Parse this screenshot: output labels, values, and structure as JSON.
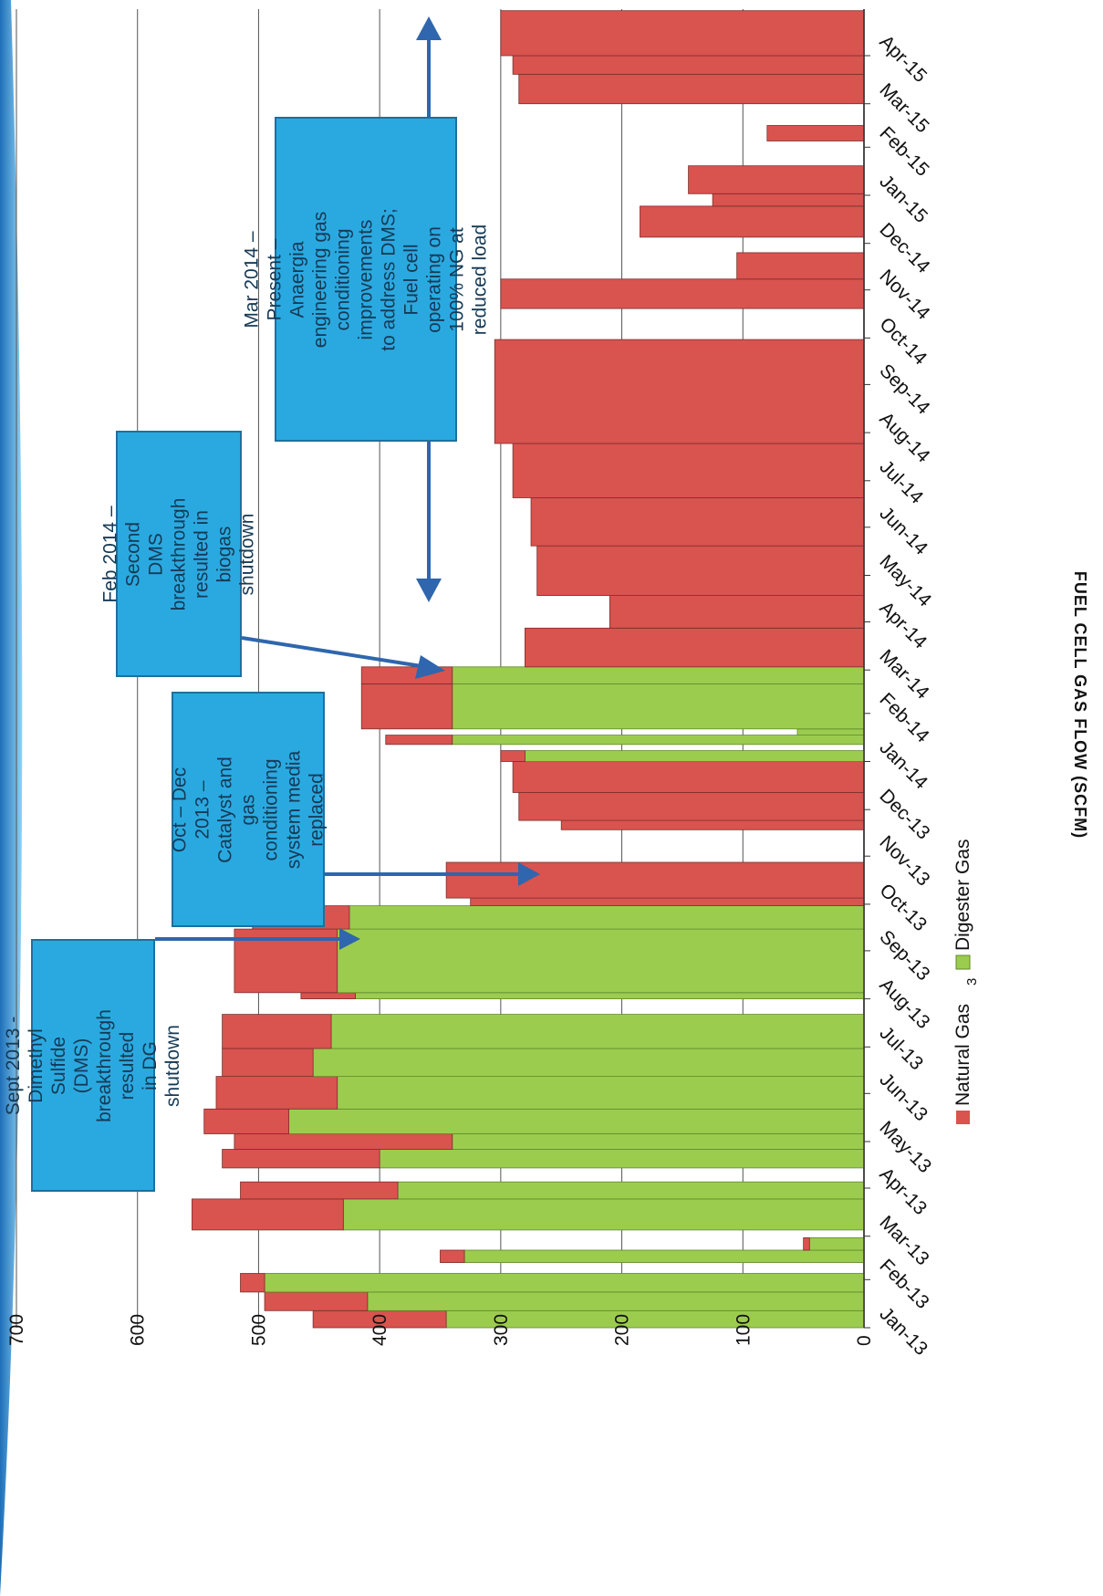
{
  "chart_data": {
    "type": "bar",
    "stacked": true,
    "orientation": "rotated 90 degrees clockwise (time axis runs bottom-to-top)",
    "ylabel": "FUEL CELL GAS FLOW (SCFM)",
    "xlabel": "",
    "ylim": [
      0,
      700
    ],
    "yticks": [
      0,
      100,
      200,
      300,
      400,
      500,
      600,
      700
    ],
    "grid": true,
    "legend_placement": "bottom",
    "colors": {
      "natural_gas": "#d9534f",
      "digester_gas": "#9ccc4e",
      "outline": "#7a2f2c"
    },
    "months": [
      "Jan-13",
      "Feb-13",
      "Mar-13",
      "Apr-13",
      "May-13",
      "Jun-13",
      "Jul-13",
      "Aug-13",
      "Sep-13",
      "Oct-13",
      "Nov-13",
      "Dec-13",
      "Jan-14",
      "Feb-14",
      "Mar-14",
      "Apr-14",
      "May-14",
      "Jun-14",
      "Jul-14",
      "Aug-14",
      "Sep-14",
      "Oct-14",
      "Nov-14",
      "Dec-14",
      "Jan-15",
      "Feb-15",
      "Mar-15",
      "Apr-15"
    ],
    "series": [
      {
        "name": "Natural Gas",
        "key": "natural_gas"
      },
      {
        "name": "Digester Gas",
        "key": "digester_gas"
      }
    ],
    "segments": [
      {
        "start": "2013-01-01",
        "end": "2013-01-12",
        "natural_gas": 110,
        "digester_gas": 345
      },
      {
        "start": "2013-01-12",
        "end": "2013-01-24",
        "natural_gas": 85,
        "digester_gas": 410
      },
      {
        "start": "2013-01-24",
        "end": "2013-02-05",
        "natural_gas": 20,
        "digester_gas": 495
      },
      {
        "start": "2013-02-05",
        "end": "2013-02-12",
        "natural_gas": 0,
        "digester_gas": 0
      },
      {
        "start": "2013-02-12",
        "end": "2013-02-20",
        "natural_gas": 20,
        "digester_gas": 330
      },
      {
        "start": "2013-02-20",
        "end": "2013-02-28",
        "natural_gas": 5,
        "digester_gas": 45
      },
      {
        "start": "2013-02-28",
        "end": "2013-03-05",
        "natural_gas": 0,
        "digester_gas": 0
      },
      {
        "start": "2013-03-05",
        "end": "2013-03-25",
        "natural_gas": 125,
        "digester_gas": 430
      },
      {
        "start": "2013-03-25",
        "end": "2013-04-05",
        "natural_gas": 130,
        "digester_gas": 385
      },
      {
        "start": "2013-04-05",
        "end": "2013-04-14",
        "natural_gas": 0,
        "digester_gas": 0
      },
      {
        "start": "2013-04-14",
        "end": "2013-04-26",
        "natural_gas": 130,
        "digester_gas": 400
      },
      {
        "start": "2013-04-26",
        "end": "2013-05-06",
        "natural_gas": 180,
        "digester_gas": 340
      },
      {
        "start": "2013-05-06",
        "end": "2013-05-22",
        "natural_gas": 70,
        "digester_gas": 475
      },
      {
        "start": "2013-05-22",
        "end": "2013-06-12",
        "natural_gas": 100,
        "digester_gas": 435
      },
      {
        "start": "2013-06-12",
        "end": "2013-06-30",
        "natural_gas": 75,
        "digester_gas": 455
      },
      {
        "start": "2013-06-30",
        "end": "2013-07-22",
        "natural_gas": 90,
        "digester_gas": 440
      },
      {
        "start": "2013-07-22",
        "end": "2013-08-01",
        "natural_gas": 0,
        "digester_gas": 0
      },
      {
        "start": "2013-08-01",
        "end": "2013-08-05",
        "natural_gas": 45,
        "digester_gas": 420
      },
      {
        "start": "2013-08-05",
        "end": "2013-09-15",
        "natural_gas": 85,
        "digester_gas": 435
      },
      {
        "start": "2013-09-15",
        "end": "2013-09-30",
        "natural_gas": 80,
        "digester_gas": 425
      },
      {
        "start": "2013-09-30",
        "end": "2013-10-05",
        "natural_gas": 325,
        "digester_gas": 0
      },
      {
        "start": "2013-10-05",
        "end": "2013-10-28",
        "natural_gas": 345,
        "digester_gas": 0
      },
      {
        "start": "2013-10-28",
        "end": "2013-11-18",
        "natural_gas": 0,
        "digester_gas": 0
      },
      {
        "start": "2013-11-18",
        "end": "2013-11-24",
        "natural_gas": 250,
        "digester_gas": 0
      },
      {
        "start": "2013-11-24",
        "end": "2013-12-12",
        "natural_gas": 285,
        "digester_gas": 0
      },
      {
        "start": "2013-12-12",
        "end": "2014-01-01",
        "natural_gas": 290,
        "digester_gas": 0
      },
      {
        "start": "2014-01-01",
        "end": "2014-01-08",
        "natural_gas": 20,
        "digester_gas": 280
      },
      {
        "start": "2014-01-08",
        "end": "2014-01-12",
        "natural_gas": 0,
        "digester_gas": 0
      },
      {
        "start": "2014-01-12",
        "end": "2014-01-18",
        "natural_gas": 55,
        "digester_gas": 340
      },
      {
        "start": "2014-01-18",
        "end": "2014-01-22",
        "natural_gas": 0,
        "digester_gas": 55
      },
      {
        "start": "2014-01-22",
        "end": "2014-02-20",
        "natural_gas": 75,
        "digester_gas": 340
      },
      {
        "start": "2014-02-20",
        "end": "2014-03-03",
        "natural_gas": 75,
        "digester_gas": 340
      },
      {
        "start": "2014-03-03",
        "end": "2014-03-28",
        "natural_gas": 280,
        "digester_gas": 0
      },
      {
        "start": "2014-03-28",
        "end": "2014-04-18",
        "natural_gas": 210,
        "digester_gas": 0
      },
      {
        "start": "2014-04-18",
        "end": "2014-05-20",
        "natural_gas": 270,
        "digester_gas": 0
      },
      {
        "start": "2014-05-20",
        "end": "2014-06-20",
        "natural_gas": 275,
        "digester_gas": 0
      },
      {
        "start": "2014-06-20",
        "end": "2014-07-25",
        "natural_gas": 290,
        "digester_gas": 0
      },
      {
        "start": "2014-07-25",
        "end": "2014-09-30",
        "natural_gas": 305,
        "digester_gas": 0
      },
      {
        "start": "2014-09-30",
        "end": "2014-10-20",
        "natural_gas": 0,
        "digester_gas": 0
      },
      {
        "start": "2014-10-20",
        "end": "2014-11-08",
        "natural_gas": 300,
        "digester_gas": 0
      },
      {
        "start": "2014-11-08",
        "end": "2014-11-25",
        "natural_gas": 105,
        "digester_gas": 0
      },
      {
        "start": "2014-11-25",
        "end": "2014-12-05",
        "natural_gas": 0,
        "digester_gas": 0
      },
      {
        "start": "2014-12-05",
        "end": "2014-12-25",
        "natural_gas": 185,
        "digester_gas": 0
      },
      {
        "start": "2014-12-25",
        "end": "2015-01-02",
        "natural_gas": 125,
        "digester_gas": 0
      },
      {
        "start": "2015-01-02",
        "end": "2015-01-20",
        "natural_gas": 145,
        "digester_gas": 0
      },
      {
        "start": "2015-01-20",
        "end": "2015-02-05",
        "natural_gas": 0,
        "digester_gas": 0
      },
      {
        "start": "2015-02-05",
        "end": "2015-02-15",
        "natural_gas": 80,
        "digester_gas": 0
      },
      {
        "start": "2015-02-15",
        "end": "2015-03-01",
        "natural_gas": 0,
        "digester_gas": 0
      },
      {
        "start": "2015-03-01",
        "end": "2015-03-20",
        "natural_gas": 285,
        "digester_gas": 0
      },
      {
        "start": "2015-03-20",
        "end": "2015-04-01",
        "natural_gas": 290,
        "digester_gas": 0
      },
      {
        "start": "2015-04-01",
        "end": "2015-04-30",
        "natural_gas": 300,
        "digester_gas": 0
      }
    ],
    "annotations": [
      {
        "text": "Sept 2013 - Dimethyl Sulfide (DMS) breakthrough resulted in DG shutdown",
        "points_to": "2013-09-30"
      },
      {
        "text": "Oct – Dec 2013 – Catalyst and gas conditioning system media replaced",
        "points_to": "2013-11-15"
      },
      {
        "text": "Feb 2014 – Second DMS breakthrough resulted in biogas shutdown",
        "points_to": "2014-03-01"
      },
      {
        "text": "Mar 2014 – Present – Anaergia engineering gas conditioning improvements to address DMS; Fuel cell operating on 100% NG at reduced load",
        "points_to": "2014-03 to 2015-04"
      }
    ]
  },
  "legend": {
    "natural_gas": "Natural Gas",
    "digester_gas": "Digester Gas",
    "page_number": "3"
  },
  "callouts": {
    "sept2013": "Sept 2013 - Dimethyl\nSulfide (DMS)\nbreakthrough resulted\nin DG shutdown",
    "octdec2013": "Oct – Dec 2013 –\nCatalyst and gas\nconditioning\nsystem media\nreplaced",
    "feb2014": "Feb 2014 – Second\nDMS breakthrough\nresulted in biogas\nshutdown",
    "mar2014": "Mar 2014 – Present –\nAnaergia engineering gas\nconditioning improvements\nto address DMS; Fuel cell\noperating on 100% NG at\nreduced load"
  }
}
